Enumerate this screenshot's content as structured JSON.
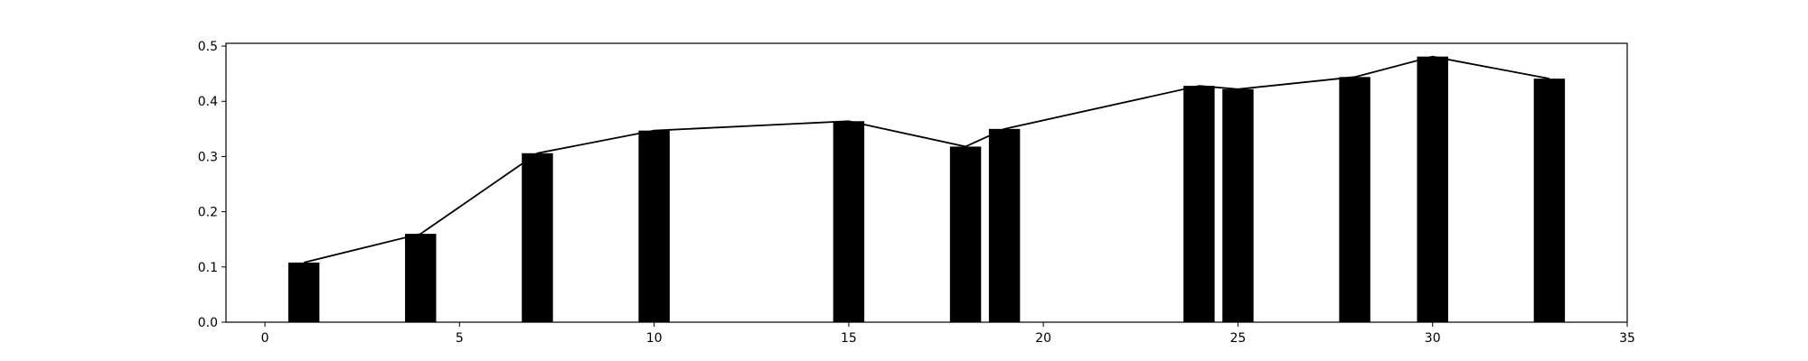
{
  "chart_data": {
    "type": "bar",
    "title": "",
    "xlabel": "",
    "ylabel": "",
    "xlim": [
      -1,
      35
    ],
    "ylim": [
      0,
      0.505
    ],
    "xticks": [
      0,
      5,
      10,
      15,
      20,
      25,
      30,
      35
    ],
    "yticks": [
      0.0,
      0.1,
      0.2,
      0.3,
      0.4,
      0.5
    ],
    "xtick_labels": [
      "0",
      "5",
      "10",
      "15",
      "20",
      "25",
      "30",
      "35"
    ],
    "ytick_labels": [
      "0.0",
      "0.1",
      "0.2",
      "0.3",
      "0.4",
      "0.5"
    ],
    "grid": false,
    "bar_width": 0.8,
    "x": [
      1,
      4,
      7,
      10,
      15,
      18,
      19,
      24,
      25,
      28,
      30,
      33
    ],
    "values": [
      0.108,
      0.16,
      0.306,
      0.347,
      0.364,
      0.318,
      0.35,
      0.428,
      0.422,
      0.444,
      0.481,
      0.441
    ],
    "line": {
      "x": [
        1,
        4,
        7,
        10,
        15,
        18,
        19,
        24,
        25,
        28,
        30,
        33
      ],
      "values": [
        0.108,
        0.16,
        0.306,
        0.347,
        0.364,
        0.318,
        0.35,
        0.428,
        0.422,
        0.444,
        0.481,
        0.441
      ]
    },
    "colors": {
      "bar": "#000000",
      "line": "#000000",
      "axis": "#000000"
    }
  }
}
